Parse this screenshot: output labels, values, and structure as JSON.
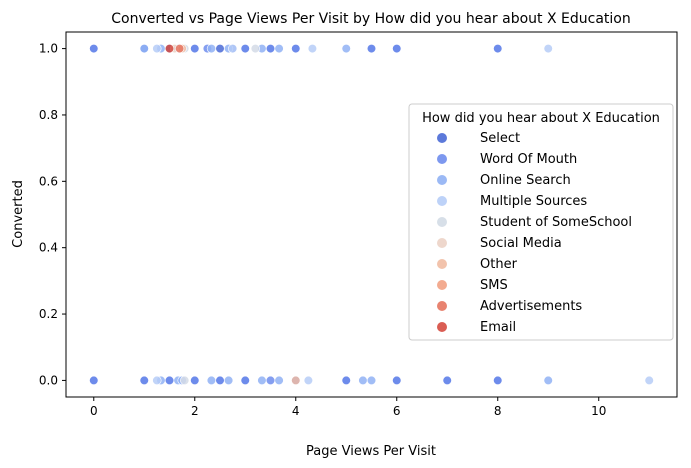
{
  "chart_data": {
    "type": "scatter",
    "title": "Converted vs Page Views Per Visit by How did you hear about X Education",
    "xlabel": "Page Views Per Visit",
    "ylabel": "Converted",
    "xlim": [
      -0.55,
      11.55
    ],
    "ylim": [
      -0.05,
      1.05
    ],
    "xticks": [
      0,
      2,
      4,
      6,
      8,
      10
    ],
    "yticks": [
      0.0,
      0.2,
      0.4,
      0.6,
      0.8,
      1.0
    ],
    "xtick_labels": [
      "0",
      "2",
      "4",
      "6",
      "8",
      "10"
    ],
    "ytick_labels": [
      "0.0",
      "0.2",
      "0.4",
      "0.6",
      "0.8",
      "1.0"
    ],
    "grid": false,
    "legend": {
      "title": "How did you hear about X Education",
      "placement": "center-right"
    },
    "series": [
      {
        "name": "Select",
        "color": "#4a6ad6",
        "points": [
          [
            0,
            1
          ],
          [
            1,
            1
          ],
          [
            1.5,
            1
          ],
          [
            2,
            1
          ],
          [
            2.5,
            1
          ],
          [
            3,
            1
          ],
          [
            3.5,
            1
          ],
          [
            4,
            1
          ],
          [
            5.5,
            1
          ],
          [
            6,
            1
          ],
          [
            8,
            1
          ],
          [
            0,
            0
          ],
          [
            1,
            0
          ],
          [
            1.5,
            0
          ],
          [
            2,
            0
          ],
          [
            2.5,
            0
          ],
          [
            3,
            0
          ],
          [
            4,
            0
          ],
          [
            5,
            0
          ],
          [
            6,
            0
          ],
          [
            7,
            0
          ],
          [
            8,
            0
          ]
        ]
      },
      {
        "name": "Word Of Mouth",
        "color": "#6f8ded",
        "points": [
          [
            0,
            1
          ],
          [
            1,
            1
          ],
          [
            2,
            1
          ],
          [
            2.25,
            1
          ],
          [
            2.75,
            1
          ],
          [
            3,
            1
          ],
          [
            3.5,
            1
          ],
          [
            4,
            1
          ],
          [
            5.5,
            1
          ],
          [
            6,
            1
          ],
          [
            8,
            1
          ],
          [
            0,
            0
          ],
          [
            1,
            0
          ],
          [
            1.5,
            0
          ],
          [
            2,
            0
          ],
          [
            2.5,
            0
          ],
          [
            3,
            0
          ],
          [
            3.5,
            0
          ],
          [
            4,
            0
          ],
          [
            5,
            0
          ],
          [
            6,
            0
          ],
          [
            7,
            0
          ],
          [
            8,
            0
          ]
        ]
      },
      {
        "name": "Online Search",
        "color": "#90b1f4",
        "points": [
          [
            1,
            1
          ],
          [
            1.33,
            1
          ],
          [
            1.67,
            1
          ],
          [
            2.33,
            1
          ],
          [
            2.67,
            1
          ],
          [
            3.33,
            1
          ],
          [
            3.67,
            1
          ],
          [
            5,
            1
          ],
          [
            1.33,
            0
          ],
          [
            1.67,
            0
          ],
          [
            1.75,
            0
          ],
          [
            2.33,
            0
          ],
          [
            2.67,
            0
          ],
          [
            3.33,
            0
          ],
          [
            3.67,
            0
          ],
          [
            5.33,
            0
          ],
          [
            5.5,
            0
          ],
          [
            9,
            0
          ]
        ]
      },
      {
        "name": "Multiple Sources",
        "color": "#b6cdf7",
        "points": [
          [
            1.25,
            1
          ],
          [
            2.75,
            1
          ],
          [
            4.33,
            1
          ],
          [
            9,
            1
          ],
          [
            1.25,
            0
          ],
          [
            4.25,
            0
          ],
          [
            11,
            0
          ]
        ]
      },
      {
        "name": "Student of SomeSchool",
        "color": "#d3dbe6",
        "points": [
          [
            1.8,
            1
          ],
          [
            3.2,
            1
          ],
          [
            1.8,
            0
          ]
        ]
      },
      {
        "name": "Social Media",
        "color": "#ecd3c6",
        "points": [
          [
            1.6,
            1
          ]
        ]
      },
      {
        "name": "Other",
        "color": "#f1bca3",
        "points": [
          [
            1.75,
            1
          ],
          [
            4,
            0
          ]
        ]
      },
      {
        "name": "SMS",
        "color": "#f2a284",
        "points": []
      },
      {
        "name": "Advertisements",
        "color": "#e67560",
        "points": [
          [
            1.7,
            1
          ]
        ]
      },
      {
        "name": "Email",
        "color": "#d64b40",
        "points": [
          [
            1.5,
            1
          ]
        ]
      }
    ]
  }
}
